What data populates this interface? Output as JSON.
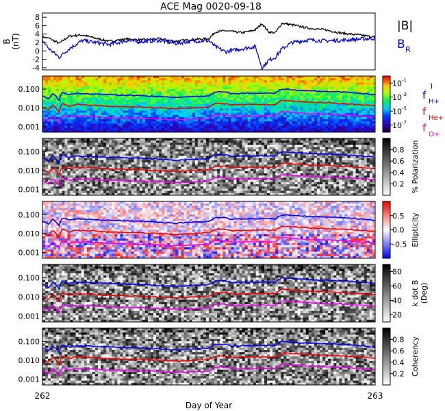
{
  "chart_data": {
    "type": "line",
    "title": "ACE Mag 0020-09-18",
    "xlabel": "Day of Year",
    "xlim": [
      262,
      263
    ],
    "x_ticks": [
      "262",
      "263"
    ],
    "panels": [
      {
        "id": "field",
        "ylabel": "B (nT)",
        "ylabel_top": "B",
        "ylabel_bottom": "(nT)",
        "ylim": [
          -4.5,
          9
        ],
        "y_ticks": [
          -4,
          -2,
          0,
          2,
          4,
          6,
          8
        ],
        "series": [
          {
            "name": "|B|",
            "color": "#000000",
            "x": [
              262.0,
              262.02,
              262.05,
              262.08,
              262.12,
              262.16,
              262.2,
              262.25,
              262.3,
              262.35,
              262.4,
              262.45,
              262.5,
              262.52,
              262.55,
              262.6,
              262.62,
              262.64,
              262.66,
              262.68,
              262.7,
              262.72,
              262.75,
              262.8,
              262.85,
              262.9,
              262.95,
              263.0
            ],
            "y": [
              3.3,
              3.0,
              1.8,
              3.5,
              3.8,
              3.0,
              2.3,
              2.8,
              2.6,
              2.9,
              2.3,
              2.7,
              2.9,
              4.5,
              4.8,
              4.3,
              4.6,
              5.0,
              6.5,
              4.5,
              4.3,
              6.6,
              6.2,
              5.4,
              5.0,
              4.2,
              3.8,
              3.3
            ]
          },
          {
            "name": "B_R",
            "color": "#0000ee",
            "x": [
              262.0,
              262.02,
              262.05,
              262.08,
              262.12,
              262.16,
              262.2,
              262.25,
              262.3,
              262.35,
              262.4,
              262.45,
              262.5,
              262.52,
              262.55,
              262.6,
              262.62,
              262.64,
              262.66,
              262.68,
              262.7,
              262.72,
              262.75,
              262.8,
              262.85,
              262.9,
              262.95,
              263.0
            ],
            "y": [
              2.5,
              0.5,
              -1.5,
              0.5,
              2.5,
              2.0,
              1.5,
              2.4,
              2.2,
              2.5,
              1.8,
              2.3,
              2.4,
              1.0,
              -0.2,
              0.5,
              0.8,
              1.0,
              -4.0,
              -2.2,
              -1.5,
              0.5,
              2.0,
              2.6,
              2.4,
              2.5,
              2.8,
              3.0
            ]
          }
        ],
        "legend": [
          "|B|",
          "B",
          "R"
        ]
      },
      {
        "id": "power",
        "kind": "spectrogram",
        "colormap": "rainbow",
        "ylabel": "",
        "ylim": [
          0.0005,
          0.5
        ],
        "log": true,
        "y_ticks": [
          "0.001",
          "0.010",
          "0.100"
        ],
        "colorbar_ticks": [
          "10",
          "10",
          "10",
          "10"
        ],
        "colorbar_exponents": [
          "-1",
          "-3",
          "-5",
          "-7"
        ],
        "colorbar_ticks_values": [
          -1,
          -3,
          -5,
          -7
        ],
        "colorbar_range": [
          -8,
          0
        ],
        "colorbar_label": ")",
        "legend": [
          "f",
          "H+",
          "f",
          "He+",
          "f",
          "O+"
        ]
      },
      {
        "id": "polarization",
        "kind": "spectrogram",
        "colormap": "gray",
        "ylim": [
          0.0005,
          0.5
        ],
        "log": true,
        "y_ticks": [
          "0.001",
          "0.010",
          "0.100"
        ],
        "colorbar_ticks": [
          "0.8",
          "0.6",
          "0.4",
          "0.2"
        ],
        "colorbar_ticks_values": [
          0.8,
          0.6,
          0.4,
          0.2
        ],
        "colorbar_range": [
          0,
          1
        ],
        "colorbar_label": "% Polarization"
      },
      {
        "id": "ellipticity",
        "kind": "spectrogram",
        "colormap": "bwr",
        "ylim": [
          0.0005,
          0.5
        ],
        "log": true,
        "y_ticks": [
          "0.001",
          "0.010",
          "0.100"
        ],
        "colorbar_ticks": [
          "0.5",
          "0.0",
          "-0.5"
        ],
        "colorbar_ticks_values": [
          0.5,
          0.0,
          -0.5
        ],
        "colorbar_range": [
          -1,
          1
        ],
        "colorbar_label": "Ellipticity"
      },
      {
        "id": "kdotb",
        "kind": "spectrogram",
        "colormap": "gray",
        "ylim": [
          0.0005,
          0.5
        ],
        "log": true,
        "y_ticks": [
          "0.001",
          "0.010",
          "0.100"
        ],
        "colorbar_ticks": [
          "80",
          "60",
          "40",
          "20"
        ],
        "colorbar_ticks_values": [
          80,
          60,
          40,
          20
        ],
        "colorbar_range": [
          10,
          90
        ],
        "colorbar_label": "k dot B",
        "colorbar_label2": "(Deg)"
      },
      {
        "id": "coherency",
        "kind": "spectrogram",
        "colormap": "gray",
        "ylim": [
          0.0005,
          0.5
        ],
        "log": true,
        "y_ticks": [
          "0.001",
          "0.010",
          "0.100"
        ],
        "colorbar_ticks": [
          "0.8",
          "0.6",
          "0.4",
          "0.2"
        ],
        "colorbar_ticks_values": [
          0.8,
          0.6,
          0.4,
          0.2
        ],
        "colorbar_range": [
          0,
          1
        ],
        "colorbar_label": "Coherency"
      }
    ],
    "gyrofrequencies": {
      "x": [
        262.0,
        262.02,
        262.03,
        262.05,
        262.06,
        262.08,
        262.1,
        262.15,
        262.2,
        262.3,
        262.4,
        262.45,
        262.5,
        262.52,
        262.55,
        262.57,
        262.6,
        262.65,
        262.7,
        262.72,
        262.8,
        262.9,
        263.0
      ],
      "H+": [
        0.045,
        0.03,
        0.06,
        0.025,
        0.07,
        0.05,
        0.06,
        0.055,
        0.05,
        0.045,
        0.035,
        0.04,
        0.042,
        0.07,
        0.07,
        0.055,
        0.06,
        0.06,
        0.06,
        0.1,
        0.08,
        0.07,
        0.05
      ],
      "He+": [
        0.011,
        0.0075,
        0.015,
        0.006,
        0.017,
        0.012,
        0.015,
        0.014,
        0.012,
        0.011,
        0.009,
        0.01,
        0.011,
        0.017,
        0.017,
        0.014,
        0.015,
        0.015,
        0.015,
        0.025,
        0.02,
        0.017,
        0.013
      ],
      "O+": [
        0.0028,
        0.0019,
        0.0037,
        0.0015,
        0.0043,
        0.003,
        0.0037,
        0.0035,
        0.003,
        0.0028,
        0.0023,
        0.0025,
        0.0027,
        0.0043,
        0.0043,
        0.0035,
        0.0037,
        0.0037,
        0.0037,
        0.0062,
        0.005,
        0.0043,
        0.0032
      ],
      "colors": {
        "H+": "#0000ee",
        "He+": "#ee0000",
        "O+": "#ee00ee"
      }
    }
  }
}
